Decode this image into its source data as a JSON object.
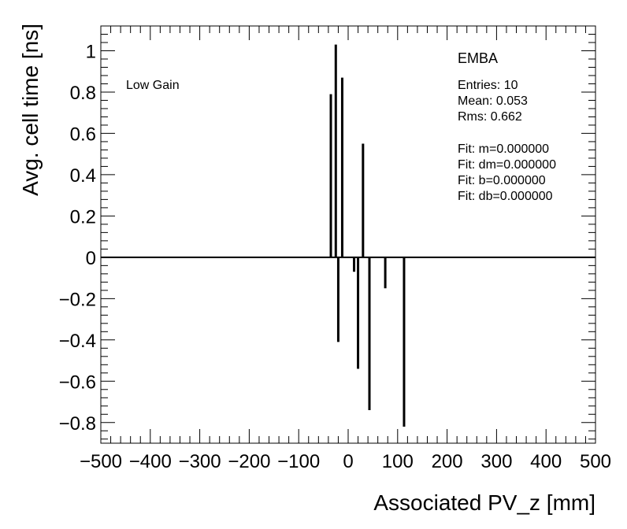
{
  "chart_data": {
    "type": "bar",
    "title": "",
    "xlabel": "Associated PV_z [mm]",
    "ylabel": "Avg. cell time [ns]",
    "xlim": [
      -500,
      500
    ],
    "ylim": [
      -0.9,
      1.12
    ],
    "grid": false,
    "x_ticks": [
      -500,
      -400,
      -300,
      -200,
      -100,
      0,
      100,
      200,
      300,
      400,
      500
    ],
    "x_tick_labels": [
      "−500",
      "−400",
      "−300",
      "−200",
      "−100",
      "0",
      "100",
      "200",
      "300",
      "400",
      "500"
    ],
    "y_ticks": [
      -0.8,
      -0.6,
      -0.4,
      -0.2,
      0,
      0.2,
      0.4,
      0.6,
      0.8,
      1
    ],
    "y_tick_labels": [
      "−0.8",
      "−0.6",
      "−0.4",
      "−0.2",
      "0",
      "0.2",
      "0.4",
      "0.6",
      "0.8",
      "1"
    ],
    "x": [
      -35,
      -25,
      -20,
      -12,
      12,
      20,
      30,
      43,
      75,
      113
    ],
    "values": [
      0.79,
      1.03,
      -0.41,
      0.87,
      -0.07,
      -0.54,
      0.55,
      -0.74,
      -0.15,
      -0.82
    ],
    "fit_line_y": 0,
    "annotation": "Low Gain",
    "stats": {
      "name": "EMBA",
      "lines": [
        "Entries: 10",
        "Mean: 0.053",
        "Rms: 0.662"
      ],
      "fit_lines": [
        "Fit: m=0.000000",
        "Fit: dm=0.000000",
        "Fit: b=0.000000",
        "Fit: db=0.000000"
      ]
    }
  }
}
